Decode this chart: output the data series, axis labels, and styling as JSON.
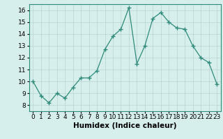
{
  "x": [
    0,
    1,
    2,
    3,
    4,
    5,
    6,
    7,
    8,
    9,
    10,
    11,
    12,
    13,
    14,
    15,
    16,
    17,
    18,
    19,
    20,
    21,
    22,
    23
  ],
  "y": [
    10.0,
    8.8,
    8.2,
    9.0,
    8.6,
    9.5,
    10.3,
    10.3,
    10.9,
    12.7,
    13.8,
    14.4,
    16.2,
    11.5,
    13.0,
    15.3,
    15.8,
    15.0,
    14.5,
    14.4,
    13.0,
    12.0,
    11.6,
    9.8
  ],
  "line_color": "#2e8b7a",
  "marker": "+",
  "marker_size": 5,
  "bg_color": "#d6eeec",
  "grid_color": "#b8d4d0",
  "xlabel": "Humidex (Indice chaleur)",
  "ylim": [
    7.5,
    16.5
  ],
  "xlim": [
    -0.5,
    23.5
  ],
  "yticks": [
    8,
    9,
    10,
    11,
    12,
    13,
    14,
    15,
    16
  ],
  "xticks": [
    0,
    1,
    2,
    3,
    4,
    5,
    6,
    7,
    8,
    9,
    10,
    11,
    12,
    13,
    14,
    15,
    16,
    17,
    18,
    19,
    20,
    21,
    22,
    23
  ],
  "xlabel_fontsize": 7.5,
  "tick_fontsize": 6.5
}
